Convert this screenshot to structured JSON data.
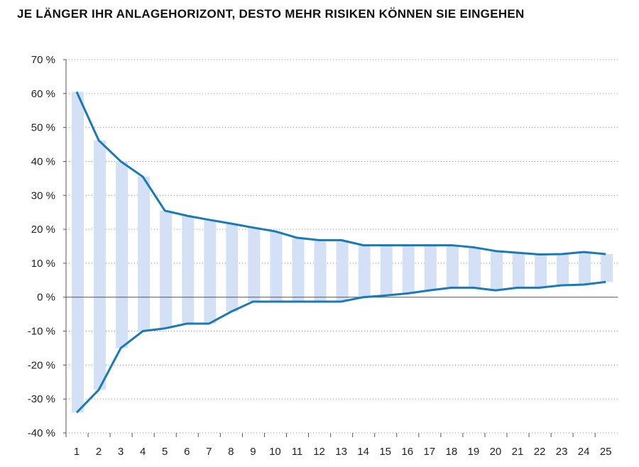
{
  "chart_data": {
    "type": "bar",
    "subtype": "floating-range-with-lines",
    "title": "JE LÄNGER IHR ANLAGEHORIZONT, DESTO MEHR RISIKEN KÖNNEN SIE EINGEHEN",
    "xlabel": "",
    "ylabel": "",
    "categories": [
      "1",
      "2",
      "3",
      "4",
      "5",
      "6",
      "7",
      "8",
      "9",
      "10",
      "11",
      "12",
      "13",
      "14",
      "15",
      "16",
      "17",
      "18",
      "19",
      "20",
      "21",
      "22",
      "23",
      "24",
      "25"
    ],
    "series": [
      {
        "values_max": [
          60.5,
          46.2,
          40,
          35.5,
          25.5,
          24,
          22.8,
          21.7,
          20.5,
          19.4,
          17.5,
          16.8,
          16.8,
          15.3,
          15.3,
          15.3,
          15.3,
          15.3,
          14.7,
          13.6,
          13.1,
          12.6,
          12.7,
          13.3,
          12.7
        ],
        "values_min": [
          -34,
          -27.3,
          -15,
          -10,
          -9.2,
          -7.8,
          -7.8,
          -4.3,
          -1.3,
          -1.3,
          -1.3,
          -1.3,
          -1.3,
          0,
          0.5,
          1.1,
          2,
          2.8,
          2.8,
          2,
          2.8,
          2.8,
          3.5,
          3.7,
          4.5
        ]
      }
    ],
    "ylim": [
      -40,
      70
    ],
    "yticks": [
      70,
      60,
      50,
      40,
      30,
      20,
      10,
      0,
      -10,
      -20,
      -30,
      -40
    ],
    "ytick_labels": [
      "70 %",
      "60 %",
      "50 %",
      "40 %",
      "30 %",
      "20 %",
      "10 %",
      "0 %",
      "-10 %",
      "-20 %",
      "-30 %",
      "-40 %"
    ],
    "grid": true,
    "colors": {
      "bar": "#d3e0f5",
      "line": "#1a7ab5",
      "zero_line": "#555555"
    }
  }
}
